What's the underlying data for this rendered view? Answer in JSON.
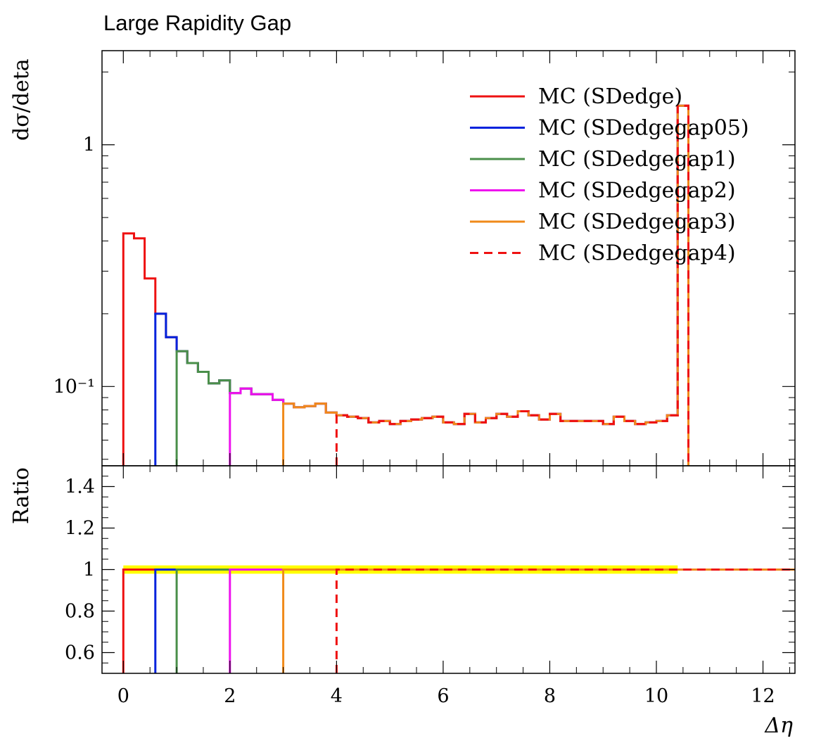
{
  "chart_data": {
    "type": "line",
    "title": "Large Rapidity Gap",
    "xlabel": "Δη",
    "ylabel": "dσ/deta",
    "ratio_ylabel": "Ratio",
    "xlim": [
      -0.4,
      12.6
    ],
    "ylim": [
      0.047,
      2.45
    ],
    "yscale": "log",
    "ratio_ylim": [
      0.5,
      1.5
    ],
    "x_ticks": [
      "0",
      "2",
      "4",
      "6",
      "8",
      "10",
      "12"
    ],
    "y_ticks": [
      "1",
      "10⁻¹"
    ],
    "ratio_ticks": [
      "0.6",
      "0.8",
      "1",
      "1.2",
      "1.4"
    ],
    "legend_position": "top-right",
    "bin_edges": [
      0.0,
      0.2,
      0.4,
      0.6,
      0.8,
      1.0,
      1.2,
      1.4,
      1.6,
      1.8,
      2.0,
      2.2,
      2.4,
      2.6,
      2.8,
      3.0,
      3.2,
      3.4,
      3.6,
      3.8,
      4.0,
      4.2,
      4.4,
      4.6,
      4.8,
      5.0,
      5.2,
      5.4,
      5.6,
      5.8,
      6.0,
      6.2,
      6.4,
      6.6,
      6.8,
      7.0,
      7.2,
      7.4,
      7.6,
      7.8,
      8.0,
      8.2,
      8.4,
      8.6,
      8.8,
      9.0,
      9.2,
      9.4,
      9.6,
      9.8,
      10.0,
      10.2,
      10.4,
      10.6
    ],
    "bin_values": [
      0.43,
      0.41,
      0.28,
      0.2,
      0.16,
      0.14,
      0.125,
      0.115,
      0.103,
      0.106,
      0.094,
      0.098,
      0.093,
      0.093,
      0.088,
      0.085,
      0.082,
      0.083,
      0.085,
      0.078,
      0.076,
      0.075,
      0.074,
      0.071,
      0.072,
      0.07,
      0.072,
      0.073,
      0.074,
      0.075,
      0.071,
      0.07,
      0.077,
      0.071,
      0.074,
      0.077,
      0.075,
      0.079,
      0.076,
      0.073,
      0.077,
      0.072,
      0.072,
      0.072,
      0.072,
      0.07,
      0.075,
      0.072,
      0.07,
      0.071,
      0.072,
      0.076,
      1.45
    ],
    "series": [
      {
        "name": "MC (SDedge)",
        "color": "#ee1111",
        "dash": "solid",
        "start": 0.0
      },
      {
        "name": "MC (SDedgegap05)",
        "color": "#0022dd",
        "dash": "solid",
        "start": 0.6
      },
      {
        "name": "MC (SDedgegap1)",
        "color": "#4a8f4a",
        "dash": "solid",
        "start": 1.0
      },
      {
        "name": "MC (SDedgegap2)",
        "color": "#ee11ee",
        "dash": "solid",
        "start": 2.0
      },
      {
        "name": "MC (SDedgegap3)",
        "color": "#f08a1a",
        "dash": "solid",
        "start": 3.0
      },
      {
        "name": "MC (SDedgegap4)",
        "color": "#ee1111",
        "dash": "dashed",
        "start": 4.0
      }
    ],
    "ratio_band": {
      "color": "#ffff00",
      "x": [
        0.0,
        10.4
      ],
      "half_width": 0.02
    }
  }
}
